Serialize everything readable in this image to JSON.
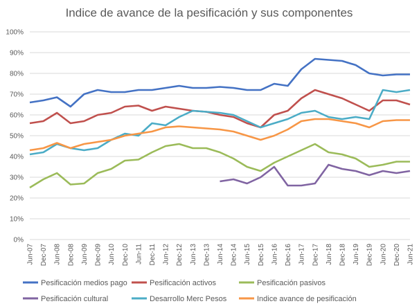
{
  "chart_data": {
    "type": "line",
    "title": "Indice de avance de la pesificación y sus componentes",
    "xlabel": "",
    "ylabel": "",
    "ylim": [
      0,
      100
    ],
    "yticks": [
      "0%",
      "10%",
      "20%",
      "30%",
      "40%",
      "50%",
      "60%",
      "70%",
      "80%",
      "90%",
      "100%"
    ],
    "grid": true,
    "legend_position": "bottom",
    "categories": [
      "Jun-07",
      "Dec-07",
      "Jun-08",
      "Dec-08",
      "Jun-09",
      "Dec-09",
      "Jun-10",
      "Dec-10",
      "Jun-11",
      "Dec-11",
      "Jun-12",
      "Dec-12",
      "Jun-13",
      "Dec-13",
      "Jun-14",
      "Dec-14",
      "Jun-15",
      "Dec-15",
      "Jun-16",
      "Dec-16",
      "Jun-17",
      "Dec-17",
      "Jun-18",
      "Dec-18",
      "Jun-19",
      "Dec-19",
      "Jun-20",
      "Dec-20",
      "Jun-21"
    ],
    "series": [
      {
        "name": "Pesificación medios pago",
        "color": "#4472c4",
        "values": [
          66,
          67,
          68.5,
          64,
          70,
          72,
          71,
          71,
          72,
          72,
          73,
          74,
          73,
          73,
          73.5,
          73,
          72,
          72,
          75,
          74,
          82,
          87,
          86.5,
          86,
          84,
          80,
          79,
          79.5,
          79.5
        ]
      },
      {
        "name": "Pesificación activos",
        "color": "#c0504d",
        "values": [
          56,
          57,
          61,
          56,
          57,
          60,
          61,
          64,
          64.5,
          62,
          64,
          63,
          62,
          61.5,
          60,
          59,
          56,
          54,
          60,
          62,
          68,
          72,
          70,
          68,
          65,
          62,
          67,
          67,
          65
        ]
      },
      {
        "name": "Pesificación pasivos",
        "color": "#9bbb59",
        "values": [
          25,
          29,
          32,
          26.5,
          27,
          32,
          34,
          38,
          38.5,
          42,
          45,
          46,
          44,
          44,
          42,
          39,
          35,
          33,
          37,
          40,
          43,
          46,
          42,
          41,
          39,
          35,
          36,
          37.5,
          37.5
        ]
      },
      {
        "name": "Pesificación cultural",
        "color": "#8064a2",
        "values": [
          null,
          null,
          null,
          null,
          null,
          null,
          null,
          null,
          null,
          null,
          null,
          null,
          null,
          null,
          28,
          29,
          27,
          30,
          35,
          26,
          26,
          27,
          36,
          34,
          33,
          31,
          33,
          32,
          33
        ]
      },
      {
        "name": "Desarrollo Merc Pesos",
        "color": "#4bacc6",
        "values": [
          41,
          42,
          46,
          44,
          43,
          44,
          48,
          51,
          50,
          56,
          55,
          59,
          62,
          61.5,
          61,
          60,
          57,
          54,
          56,
          58,
          61,
          62,
          59,
          58,
          59,
          58,
          72,
          71,
          72
        ]
      },
      {
        "name": "Indice avance de pesificación",
        "color": "#f79646",
        "values": [
          43,
          44,
          46.5,
          44,
          46,
          47,
          48,
          50,
          51,
          52,
          54,
          54.5,
          54,
          53.5,
          53,
          52,
          50,
          48,
          50,
          53,
          57,
          58,
          58,
          57,
          56,
          54,
          57,
          57.5,
          57.5
        ]
      }
    ]
  }
}
